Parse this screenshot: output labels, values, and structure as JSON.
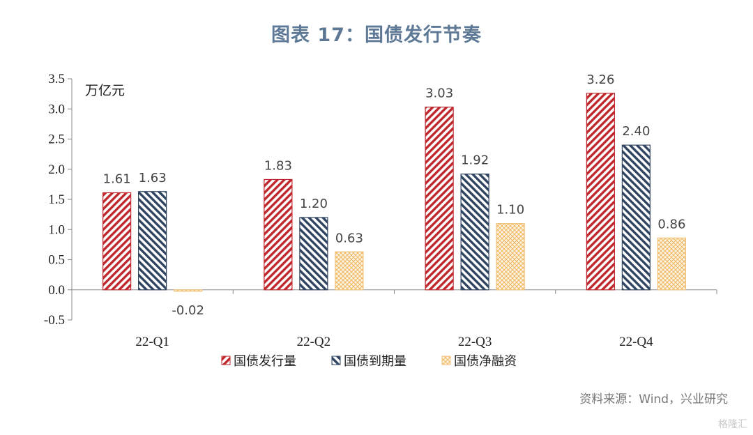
{
  "title": "图表 17：国债发行节奏",
  "unit_label": "万亿元",
  "source": "资料来源：Wind，兴业研究",
  "watermark": "格隆汇",
  "colors": {
    "issuance": "#c0272d",
    "maturity": "#2f4460",
    "net": "#f2c27a"
  },
  "chart_data": {
    "type": "bar",
    "title": "图表 17：国债发行节奏",
    "ylabel": "万亿元",
    "xlabel": "",
    "ylim": [
      -0.5,
      3.5
    ],
    "yticks": [
      "3.5",
      "3.0",
      "2.5",
      "2.0",
      "1.5",
      "1.0",
      "0.5",
      "0.0",
      "-0.5"
    ],
    "ytick_values": [
      3.5,
      3.0,
      2.5,
      2.0,
      1.5,
      1.0,
      0.5,
      0.0,
      -0.5
    ],
    "categories": [
      "22-Q1",
      "22-Q2",
      "22-Q3",
      "22-Q4"
    ],
    "series": [
      {
        "name": "国债发行量",
        "values": [
          1.61,
          1.83,
          3.03,
          3.26
        ],
        "labels": [
          "1.61",
          "1.83",
          "3.03",
          "3.26"
        ]
      },
      {
        "name": "国债到期量",
        "values": [
          1.63,
          1.2,
          1.92,
          2.4
        ],
        "labels": [
          "1.63",
          "1.20",
          "1.92",
          "2.40"
        ]
      },
      {
        "name": "国债净融资",
        "values": [
          -0.02,
          0.63,
          1.1,
          0.86
        ],
        "labels": [
          "-0.02",
          "0.63",
          "1.10",
          "0.86"
        ]
      }
    ],
    "legend_position": "bottom",
    "grid": false
  }
}
